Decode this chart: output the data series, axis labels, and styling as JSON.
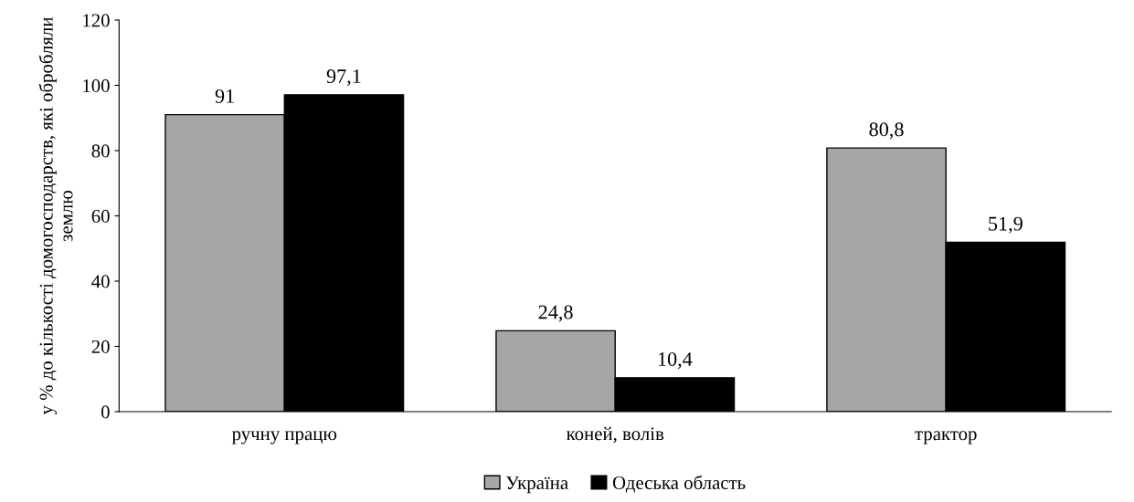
{
  "chart_data": {
    "type": "bar",
    "ylabel": "у % до кількості домогосподарств, які обробляли землю",
    "categories": [
      "ручну працю",
      "коней, волів",
      "трактор"
    ],
    "series": [
      {
        "name": "Україна",
        "color": "#a6a6a6",
        "values": [
          91,
          24.8,
          80.8
        ],
        "value_labels": [
          "91",
          "24,8",
          "80,8"
        ]
      },
      {
        "name": "Одеська область",
        "color": "#000000",
        "values": [
          97.1,
          10.4,
          51.9
        ],
        "value_labels": [
          "97,1",
          "10,4",
          "51,9"
        ]
      }
    ],
    "ylim": [
      0,
      120
    ],
    "yticks": [
      0,
      20,
      40,
      60,
      80,
      100,
      120
    ],
    "grid": false,
    "legend": "bottom"
  }
}
